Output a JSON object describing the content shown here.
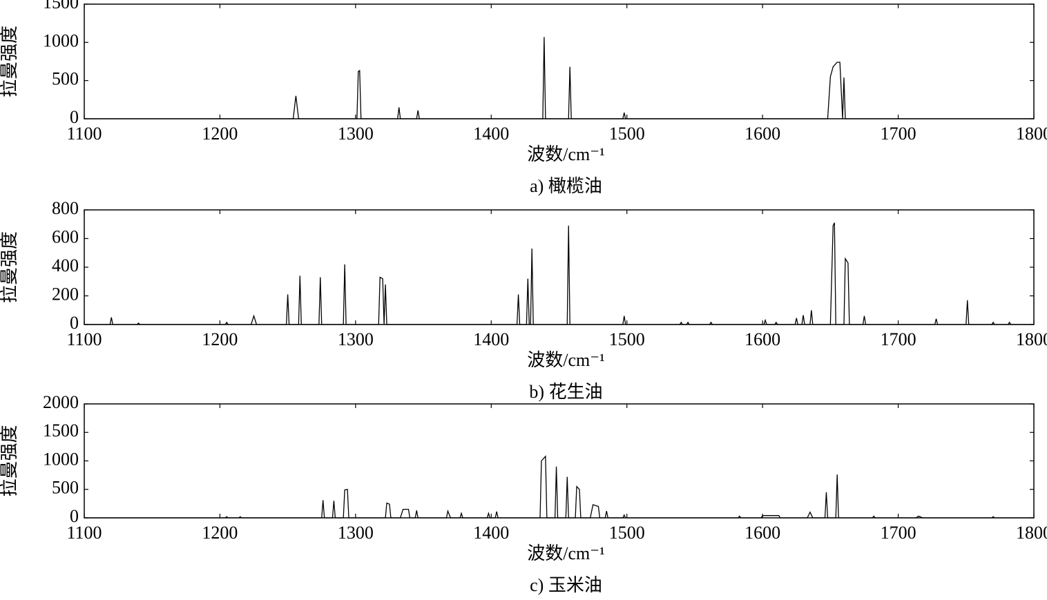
{
  "chart_data": [
    {
      "type": "line",
      "caption": "a) 橄榄油",
      "xlabel": "波数/cm⁻¹",
      "ylabel": "拉曼强度",
      "xlim": [
        1100,
        1800
      ],
      "xticks": [
        1100,
        1200,
        1300,
        1400,
        1500,
        1600,
        1700,
        1800
      ],
      "ylim": [
        0,
        1500
      ],
      "yticks": [
        0,
        500,
        1000,
        1500
      ],
      "color": "#000000",
      "x": [
        1100,
        1254,
        1256,
        1258,
        1301,
        1302,
        1303,
        1304,
        1331,
        1332,
        1333,
        1345,
        1346,
        1347,
        1438,
        1439,
        1440,
        1457,
        1458,
        1459,
        1497,
        1498,
        1499,
        1648,
        1650,
        1652,
        1655,
        1657,
        1659,
        1660,
        1661,
        1800
      ],
      "values": [
        0,
        0,
        300,
        0,
        0,
        620,
        630,
        0,
        0,
        150,
        0,
        0,
        110,
        0,
        0,
        1070,
        0,
        0,
        680,
        0,
        0,
        80,
        0,
        0,
        550,
        680,
        740,
        740,
        0,
        540,
        0,
        0
      ]
    },
    {
      "type": "line",
      "caption": "b) 花生油",
      "xlabel": "波数/cm⁻¹",
      "ylabel": "拉曼强度",
      "xlim": [
        1100,
        1800
      ],
      "xticks": [
        1100,
        1200,
        1300,
        1400,
        1500,
        1600,
        1700,
        1800
      ],
      "ylim": [
        0,
        800
      ],
      "yticks": [
        0,
        200,
        400,
        600,
        800
      ],
      "color": "#000000",
      "x": [
        1100,
        1119,
        1120,
        1121,
        1139,
        1140,
        1141,
        1204,
        1205,
        1206,
        1223,
        1225,
        1227,
        1249,
        1250,
        1251,
        1258,
        1259,
        1260,
        1273,
        1274,
        1275,
        1291,
        1292,
        1293,
        1317,
        1318,
        1320,
        1321,
        1322,
        1323,
        1419,
        1420,
        1421,
        1426,
        1427,
        1428,
        1429,
        1430,
        1431,
        1456,
        1457,
        1458,
        1497,
        1498,
        1499,
        1539,
        1540,
        1541,
        1544,
        1545,
        1546,
        1561,
        1562,
        1563,
        1601,
        1602,
        1603,
        1609,
        1610,
        1611,
        1624,
        1625,
        1626,
        1629,
        1630,
        1631,
        1635,
        1636,
        1637,
        1650,
        1652,
        1653,
        1654,
        1660,
        1661,
        1663,
        1664,
        1674,
        1675,
        1676,
        1727,
        1728,
        1729,
        1750,
        1751,
        1752,
        1769,
        1770,
        1771,
        1781,
        1782,
        1783,
        1800
      ],
      "values": [
        0,
        0,
        50,
        0,
        0,
        10,
        0,
        0,
        15,
        0,
        0,
        60,
        0,
        0,
        210,
        0,
        0,
        340,
        0,
        0,
        330,
        0,
        0,
        420,
        0,
        0,
        330,
        320,
        0,
        280,
        0,
        0,
        210,
        0,
        0,
        320,
        0,
        0,
        530,
        0,
        0,
        690,
        0,
        0,
        60,
        0,
        0,
        15,
        0,
        0,
        15,
        0,
        0,
        15,
        0,
        0,
        30,
        0,
        0,
        15,
        0,
        0,
        45,
        0,
        0,
        65,
        0,
        0,
        100,
        0,
        0,
        690,
        710,
        0,
        0,
        460,
        430,
        0,
        0,
        60,
        0,
        0,
        40,
        0,
        0,
        170,
        0,
        0,
        15,
        0,
        0,
        15,
        0,
        0
      ]
    },
    {
      "type": "line",
      "caption": "c) 玉米油",
      "xlabel": "波数/cm⁻¹",
      "ylabel": "拉曼强度",
      "xlim": [
        1100,
        1800
      ],
      "xticks": [
        1100,
        1200,
        1300,
        1400,
        1500,
        1600,
        1700,
        1800
      ],
      "ylim": [
        0,
        2000
      ],
      "yticks": [
        0,
        500,
        1000,
        1500,
        2000
      ],
      "color": "#000000",
      "x": [
        1100,
        1204,
        1205,
        1206,
        1214,
        1215,
        1216,
        1275,
        1276,
        1277,
        1283,
        1284,
        1285,
        1291,
        1292,
        1294,
        1295,
        1322,
        1323,
        1325,
        1326,
        1333,
        1335,
        1339,
        1340,
        1344,
        1345,
        1346,
        1367,
        1368,
        1370,
        1377,
        1378,
        1379,
        1397,
        1398,
        1399,
        1403,
        1404,
        1405,
        1436,
        1437,
        1440,
        1441,
        1447,
        1448,
        1449,
        1455,
        1456,
        1457,
        1462,
        1463,
        1465,
        1466,
        1473,
        1475,
        1479,
        1480,
        1484,
        1485,
        1486,
        1497,
        1498,
        1499,
        1582,
        1583,
        1584,
        1599,
        1600,
        1612,
        1613,
        1633,
        1635,
        1637,
        1646,
        1647,
        1648,
        1654,
        1655,
        1656,
        1681,
        1682,
        1683,
        1713,
        1715,
        1718,
        1769,
        1770,
        1771,
        1800
      ],
      "values": [
        0,
        0,
        20,
        0,
        0,
        20,
        0,
        0,
        310,
        0,
        0,
        300,
        0,
        0,
        490,
        500,
        0,
        0,
        260,
        240,
        0,
        0,
        150,
        150,
        0,
        0,
        130,
        0,
        0,
        120,
        0,
        0,
        80,
        0,
        0,
        80,
        0,
        0,
        110,
        0,
        0,
        1000,
        1080,
        0,
        0,
        900,
        0,
        0,
        720,
        0,
        0,
        550,
        500,
        0,
        0,
        230,
        200,
        0,
        0,
        120,
        0,
        0,
        50,
        0,
        0,
        30,
        0,
        0,
        40,
        40,
        0,
        0,
        100,
        0,
        0,
        450,
        0,
        0,
        760,
        0,
        0,
        30,
        0,
        0,
        30,
        0,
        0,
        20,
        0,
        0
      ]
    }
  ]
}
